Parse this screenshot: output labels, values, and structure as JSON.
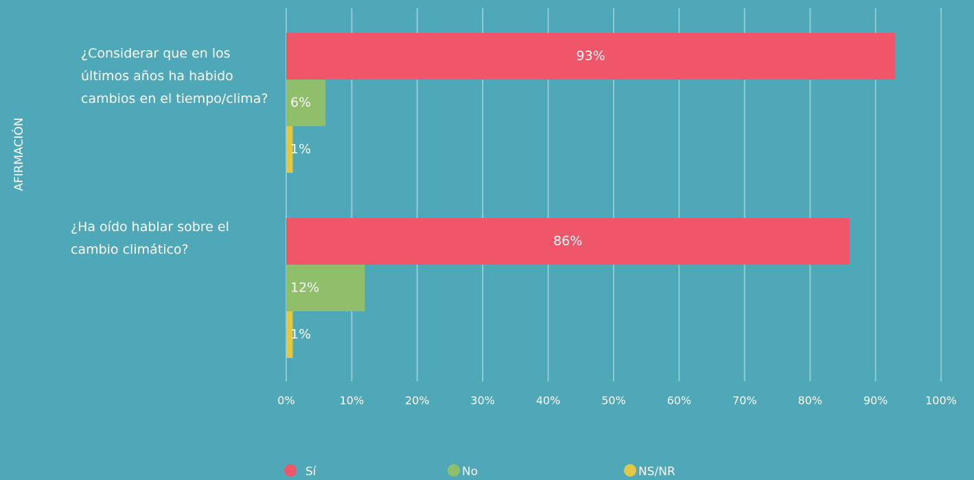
{
  "chart_data": {
    "type": "bar",
    "orientation": "horizontal",
    "y_axis_label": "AFIRMACIÓN",
    "categories": [
      "¿Considerar que en los últimos años ha habido cambios en el tiempo/clima?",
      "¿Ha oído hablar sobre el cambio climático?"
    ],
    "series": [
      {
        "name": "Sí",
        "color": "#f0566a",
        "values": [
          93,
          86
        ],
        "value_labels": [
          "93%",
          "86%"
        ]
      },
      {
        "name": "No",
        "color": "#8fbf6a",
        "values": [
          6,
          12
        ],
        "value_labels": [
          "6%",
          "12%"
        ]
      },
      {
        "name": "NS/NR",
        "color": "#e2c945",
        "values": [
          1,
          1
        ],
        "value_labels": [
          "1%",
          "1%"
        ]
      }
    ],
    "xlim": [
      0,
      100
    ],
    "xticks": [
      {
        "value": 0,
        "label": "0%"
      },
      {
        "value": 10,
        "label": "10%"
      },
      {
        "value": 20,
        "label": "20%"
      },
      {
        "value": 30,
        "label": "30%"
      },
      {
        "value": 40,
        "label": "40%"
      },
      {
        "value": 50,
        "label": "50%"
      },
      {
        "value": 60,
        "label": "60%"
      },
      {
        "value": 70,
        "label": "70%"
      },
      {
        "value": 80,
        "label": "80%"
      },
      {
        "value": 90,
        "label": "90%"
      },
      {
        "value": 100,
        "label": "100%"
      }
    ],
    "grid": true,
    "legend": "bottom"
  }
}
